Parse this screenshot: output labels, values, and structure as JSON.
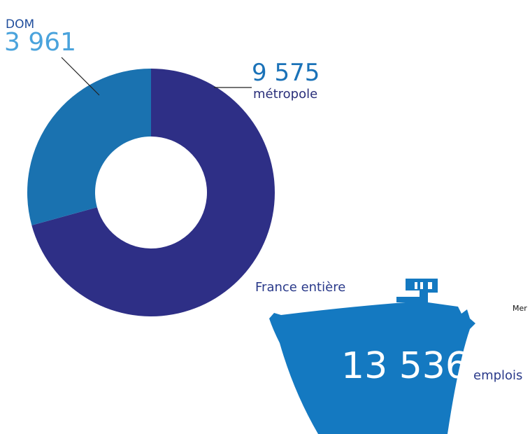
{
  "chart_data": {
    "type": "pie",
    "donut": true,
    "categories": [
      "DOM",
      "métropole"
    ],
    "values": [
      3961,
      9575
    ],
    "value_labels": [
      "3 961",
      "9 575"
    ],
    "colors": [
      "#1a72b0",
      "#2e2f86"
    ]
  },
  "total": {
    "value": 13536,
    "label": "13 536",
    "unit": "emplois",
    "scope": "France entière",
    "sector": "Mer"
  }
}
